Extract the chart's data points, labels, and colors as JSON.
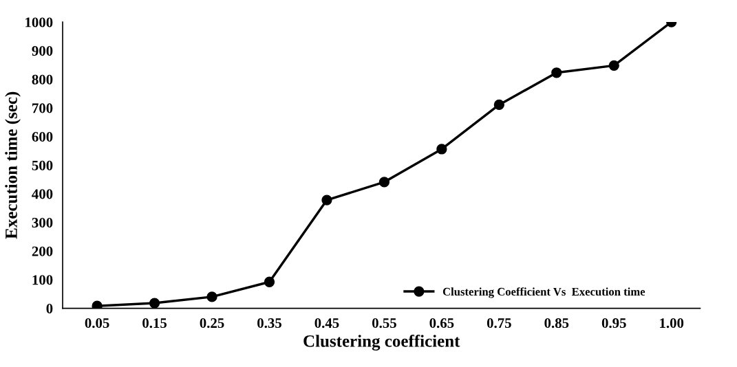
{
  "chart_data": {
    "type": "line",
    "xlabel": "Clustering coefficient",
    "ylabel": "Execution time (sec)",
    "categories": [
      "0.05",
      "0.15",
      "0.25",
      "0.35",
      "0.45",
      "0.55",
      "0.65",
      "0.75",
      "0.85",
      "0.95",
      "1.00"
    ],
    "series": [
      {
        "name": "Clustering Coefficient Vs  Execution time",
        "color": "#000000",
        "values": [
          8,
          18,
          40,
          92,
          378,
          441,
          556,
          711,
          823,
          848,
          1000
        ]
      }
    ],
    "ylim": [
      0,
      1000
    ],
    "yticks": [
      0,
      100,
      200,
      300,
      400,
      500,
      600,
      700,
      800,
      900,
      1000
    ],
    "marker": "circle",
    "line_style": "solid",
    "grid": false,
    "legend": "bottom right"
  }
}
